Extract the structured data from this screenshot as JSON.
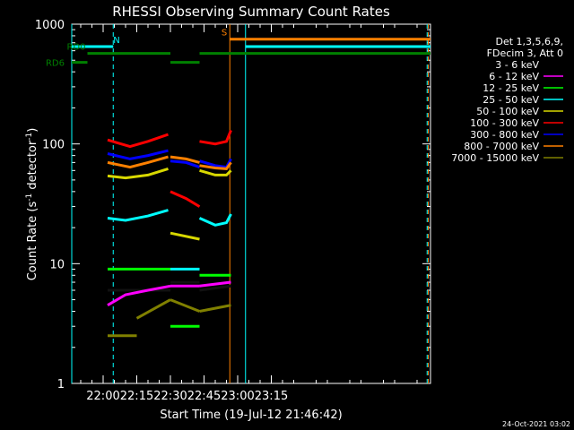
{
  "chart_data": {
    "type": "line",
    "title": "RHESSI Observing Summary Count Rates",
    "xlabel": "Start Time (19-Jul-12 21:46:42)",
    "ylabel_main": "Count Rate (s",
    "ylabel_sup1": "-1",
    "ylabel_mid": " detector",
    "ylabel_sup2": "-1",
    "ylabel_end": ")",
    "yscale": "log",
    "ylim": [
      1,
      1000
    ],
    "xlim_minutes": [
      -14,
      146
    ],
    "x_tick_labels": [
      "22:00",
      "22:15",
      "22:30",
      "22:45",
      "23:00",
      "23:15"
    ],
    "x_tick_minutes": [
      0,
      15,
      30,
      45,
      60,
      75
    ],
    "y_tick_labels": [
      "1",
      "10",
      "100",
      "1000"
    ],
    "y_tick_values": [
      1,
      10,
      100,
      1000
    ],
    "legend_header": [
      "Det 1,3,5,6,9,",
      "FDecim 3, Att 0"
    ],
    "legend_placement": "right",
    "series": [
      {
        "name": "3 - 6 keV",
        "color": "#000000",
        "segments": [
          [
            [
              2,
              6.0
            ],
            [
              30,
              6.0
            ]
          ],
          [
            [
              30,
              7.0
            ],
            [
              43,
              7.0
            ]
          ],
          [
            [
              43,
              6.0
            ],
            [
              57,
              6.5
            ]
          ]
        ]
      },
      {
        "name": "6 - 12 keV",
        "color": "#ff00ff",
        "segments": [
          [
            [
              2,
              4.5
            ],
            [
              10,
              5.5
            ],
            [
              20,
              6.0
            ],
            [
              30,
              6.5
            ]
          ],
          [
            [
              30,
              6.5
            ],
            [
              43,
              6.5
            ]
          ],
          [
            [
              43,
              6.5
            ],
            [
              57,
              7.0
            ]
          ]
        ]
      },
      {
        "name": "12 - 25 keV",
        "color": "#00ff00",
        "segments": [
          [
            [
              2,
              9.0
            ],
            [
              30,
              9.0
            ]
          ],
          [
            [
              30,
              3.0
            ],
            [
              43,
              3.0
            ]
          ],
          [
            [
              43,
              8.0
            ],
            [
              57,
              8.0
            ]
          ]
        ]
      },
      {
        "name": "25 - 50 keV",
        "color": "#00ffff",
        "segments": [
          [
            [
              2,
              24
            ],
            [
              10,
              23
            ],
            [
              20,
              25
            ],
            [
              29,
              28
            ]
          ],
          [
            [
              30,
              9.0
            ],
            [
              43,
              9.0
            ]
          ],
          [
            [
              43,
              24
            ],
            [
              50,
              21
            ],
            [
              55,
              22
            ],
            [
              57,
              26
            ]
          ]
        ]
      },
      {
        "name": "50 - 100 keV",
        "color": "#d8d800",
        "segments": [
          [
            [
              2,
              54
            ],
            [
              10,
              52
            ],
            [
              20,
              55
            ],
            [
              29,
              62
            ]
          ],
          [
            [
              30,
              18
            ],
            [
              43,
              16
            ]
          ],
          [
            [
              43,
              60
            ],
            [
              50,
              55
            ],
            [
              55,
              55
            ],
            [
              57,
              60
            ]
          ]
        ]
      },
      {
        "name": "100 - 300 keV",
        "color": "#ff0000",
        "segments": [
          [
            [
              2,
              108
            ],
            [
              12,
              95
            ],
            [
              20,
              105
            ],
            [
              29,
              120
            ]
          ],
          [
            [
              30,
              40
            ],
            [
              37,
              35
            ],
            [
              43,
              30
            ]
          ],
          [
            [
              43,
              105
            ],
            [
              50,
              100
            ],
            [
              55,
              105
            ],
            [
              57,
              130
            ]
          ]
        ]
      },
      {
        "name": "300 - 800 keV",
        "color": "#0000ff",
        "segments": [
          [
            [
              2,
              83
            ],
            [
              12,
              75
            ],
            [
              20,
              80
            ],
            [
              29,
              88
            ]
          ],
          [
            [
              30,
              72
            ],
            [
              37,
              70
            ],
            [
              43,
              64
            ]
          ],
          [
            [
              43,
              72
            ],
            [
              50,
              66
            ],
            [
              55,
              64
            ],
            [
              57,
              75
            ]
          ]
        ]
      },
      {
        "name": "800 - 7000 keV",
        "color": "#ff8000",
        "segments": [
          [
            [
              2,
              70
            ],
            [
              12,
              64
            ],
            [
              20,
              70
            ],
            [
              29,
              78
            ]
          ],
          [
            [
              30,
              78
            ],
            [
              37,
              75
            ],
            [
              43,
              70
            ]
          ],
          [
            [
              43,
              66
            ],
            [
              50,
              63
            ],
            [
              55,
              62
            ],
            [
              57,
              70
            ]
          ]
        ]
      },
      {
        "name": "7000 - 15000 keV",
        "color": "#808000",
        "segments": [
          [
            [
              2,
              2.5
            ],
            [
              15,
              2.5
            ]
          ],
          [
            [
              15,
              3.5
            ],
            [
              30,
              5.0
            ]
          ],
          [
            [
              30,
              5.0
            ],
            [
              43,
              4.0
            ]
          ],
          [
            [
              43,
              4.0
            ],
            [
              57,
              4.5
            ]
          ]
        ]
      }
    ],
    "status_bars": [
      {
        "color": "#00ffff",
        "segments": [
          [
            -14,
            4.5
          ],
          [
            63.5,
            146
          ]
        ],
        "value": 650,
        "label": "N",
        "label_minute": 6
      },
      {
        "color": "#008000",
        "segments": [
          [
            -14,
            -7
          ]
        ],
        "value": 480,
        "label": "RD6",
        "label_outside": true
      },
      {
        "color": "#008000",
        "segments": [
          [
            -7,
            30
          ],
          [
            43,
            146
          ]
        ],
        "value": 570,
        "label": "RD0",
        "label_minute": -12
      },
      {
        "color": "#008000",
        "segments": [
          [
            30,
            43
          ]
        ],
        "value": 480
      },
      {
        "color": "#ff8000",
        "segments": [
          [
            56.5,
            146
          ]
        ],
        "value": 750,
        "label": "S",
        "label_minute": 54
      }
    ],
    "vertical_lines": [
      {
        "minute": -14,
        "color": "#00ffff",
        "style": "solid"
      },
      {
        "minute": 4.5,
        "color": "#00ffff",
        "style": "dashed"
      },
      {
        "minute": 56.5,
        "color": "#ff8000",
        "style": "solid"
      },
      {
        "minute": 63.5,
        "color": "#00ffff",
        "style": "solid"
      },
      {
        "minute": 144.5,
        "color": "#00ffff",
        "style": "dashed"
      },
      {
        "minute": 145,
        "color": "#ff8000",
        "style": "dashed"
      }
    ],
    "footer_timestamp": "24-Oct-2021 03:02"
  }
}
